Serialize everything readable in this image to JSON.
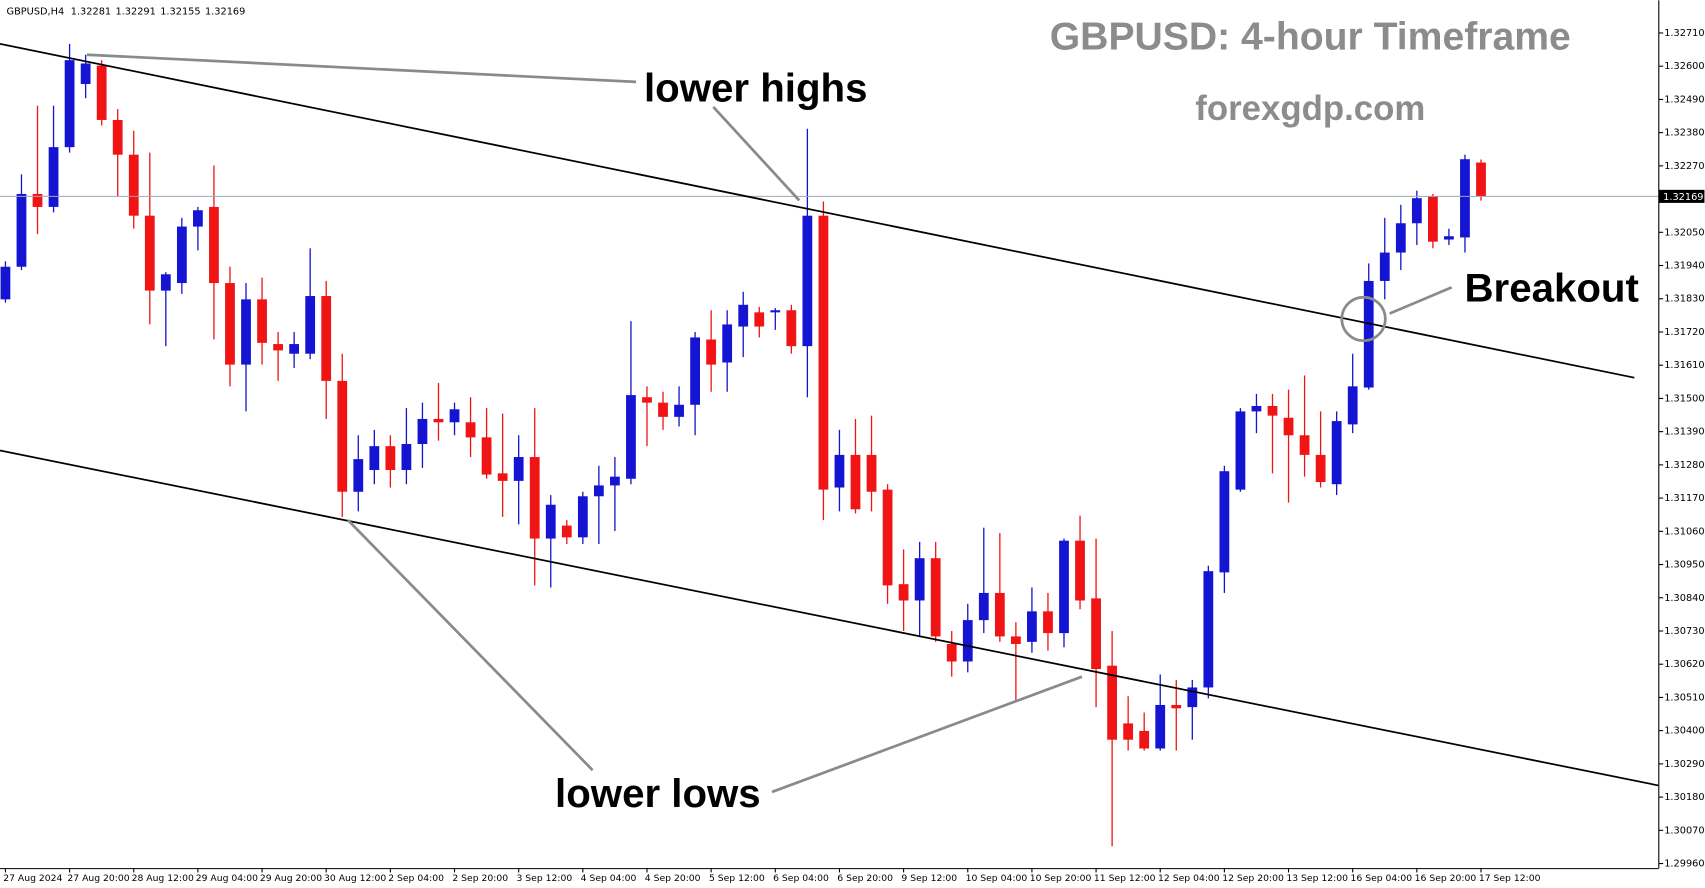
{
  "chart_data": {
    "type": "candlestick",
    "symbol": "GBPUSD,H4",
    "title": "GBPUSD: 4-hour Timeframe",
    "subtitle": "forexgdp.com",
    "annotations": [
      "lower highs",
      "lower lows",
      "Breakout"
    ],
    "up_color": "#1414d2",
    "down_color": "#f01414",
    "price_line_color": "#9aa8ba",
    "categories": [
      "27 Aug 2024",
      null,
      null,
      null,
      "27 Aug 20:00",
      null,
      null,
      null,
      "28 Aug 12:00",
      null,
      null,
      null,
      "29 Aug 04:00",
      null,
      null,
      null,
      "29 Aug 20:00",
      null,
      null,
      null,
      "30 Aug 12:00",
      null,
      null,
      null,
      "2 Sep 04:00",
      null,
      null,
      null,
      "2 Sep 20:00",
      null,
      null,
      null,
      "3 Sep 12:00",
      null,
      null,
      null,
      "4 Sep 04:00",
      null,
      null,
      null,
      "4 Sep 20:00",
      null,
      null,
      null,
      "5 Sep 12:00",
      null,
      null,
      null,
      "6 Sep 04:00",
      null,
      null,
      null,
      "6 Sep 20:00",
      null,
      null,
      null,
      "9 Sep 12:00",
      null,
      null,
      null,
      "10 Sep 04:00",
      null,
      null,
      null,
      "10 Sep 20:00",
      null,
      null,
      null,
      "11 Sep 12:00",
      null,
      null,
      null,
      "12 Sep 04:00",
      null,
      null,
      null,
      "12 Sep 20:00",
      null,
      null,
      null,
      "13 Sep 12:00",
      null,
      null,
      null,
      "16 Sep 04:00",
      null,
      null,
      null,
      "16 Sep 20:00",
      null,
      null,
      null,
      "17 Sep 12:00"
    ],
    "open": [
      1.31828,
      1.31936,
      1.32177,
      1.32134,
      1.32332,
      1.32541,
      1.32602,
      1.32422,
      1.32307,
      1.32105,
      1.31857,
      1.31882,
      1.32069,
      1.32134,
      1.31882,
      1.31612,
      1.31828,
      1.3168,
      1.31648,
      1.31648,
      1.31839,
      1.31558,
      1.31191,
      1.31263,
      1.31342,
      1.31263,
      1.31349,
      1.31432,
      1.31421,
      1.31421,
      1.31371,
      1.31252,
      1.31227,
      1.31306,
      1.31036,
      1.31079,
      1.3104,
      1.31176,
      1.31212,
      1.31234,
      1.31504,
      1.31486,
      1.31439,
      1.31479,
      1.31695,
      1.31619,
      1.31738,
      1.31785,
      1.31785,
      1.31792,
      1.31673,
      1.32105,
      1.31205,
      1.31313,
      1.31313,
      1.31198,
      1.30885,
      1.30831,
      1.30971,
      1.30687,
      1.30629,
      1.30766,
      1.30856,
      1.30712,
      1.30694,
      1.30795,
      1.30723,
      1.31029,
      1.30838,
      1.30615,
      1.30424,
      1.30399,
      1.30341,
      1.30485,
      1.30478,
      1.30543,
      1.30924,
      1.31198,
      1.31457,
      1.31475,
      1.31436,
      1.31378,
      1.31313,
      1.31216,
      1.31414,
      1.31536,
      1.31889,
      1.31983,
      1.3208,
      1.3217,
      1.32026,
      1.32033,
      1.32281
    ],
    "high": [
      1.31954,
      1.32242,
      1.32469,
      1.32469,
      1.32674,
      1.32638,
      1.3262,
      1.32458,
      1.32386,
      1.32314,
      1.31918,
      1.32098,
      1.32134,
      1.32271,
      1.31936,
      1.31882,
      1.319,
      1.3172,
      1.3172,
      1.31997,
      1.31889,
      1.31648,
      1.31378,
      1.31396,
      1.31378,
      1.31468,
      1.31486,
      1.31551,
      1.31486,
      1.31504,
      1.31468,
      1.3145,
      1.31378,
      1.31468,
      1.3118,
      1.31097,
      1.31191,
      1.31277,
      1.31306,
      1.31756,
      1.3154,
      1.31522,
      1.3154,
      1.3172,
      1.31792,
      1.31792,
      1.31853,
      1.31803,
      1.31799,
      1.3181,
      1.32393,
      1.32152,
      1.31396,
      1.31432,
      1.31443,
      1.31216,
      1.31,
      1.31025,
      1.31025,
      1.3073,
      1.3082,
      1.31072,
      1.31054,
      1.30759,
      1.30874,
      1.30856,
      1.31036,
      1.31112,
      1.31036,
      1.3073,
      1.30514,
      1.3046,
      1.30586,
      1.30568,
      1.30568,
      1.30946,
      1.31277,
      1.31468,
      1.31515,
      1.31515,
      1.31529,
      1.31576,
      1.31457,
      1.31457,
      1.31648,
      1.31947,
      1.32098,
      1.32141,
      1.32188,
      1.32177,
      1.32062,
      1.32307,
      1.32291
    ],
    "low": [
      1.31817,
      1.31925,
      1.32044,
      1.32116,
      1.32314,
      1.32494,
      1.32404,
      1.3217,
      1.32062,
      1.31745,
      1.31673,
      1.31846,
      1.3199,
      1.31695,
      1.3154,
      1.31457,
      1.31612,
      1.31558,
      1.31601,
      1.3163,
      1.31432,
      1.31108,
      1.31126,
      1.31216,
      1.31205,
      1.31216,
      1.3127,
      1.3136,
      1.31378,
      1.31306,
      1.31234,
      1.31108,
      1.31083,
      1.30881,
      1.30874,
      1.31018,
      1.31018,
      1.31018,
      1.31061,
      1.31216,
      1.31342,
      1.31396,
      1.31407,
      1.31378,
      1.31522,
      1.31522,
      1.31637,
      1.31702,
      1.31727,
      1.31648,
      1.31504,
      1.31097,
      1.31126,
      1.31119,
      1.31126,
      1.3082,
      1.3073,
      1.30712,
      1.30694,
      1.30579,
      1.30593,
      1.30723,
      1.30694,
      1.30496,
      1.30658,
      1.30665,
      1.30676,
      1.30802,
      1.30478,
      1.30017,
      1.30334,
      1.30334,
      1.30334,
      1.30334,
      1.3037,
      1.30507,
      1.30856,
      1.31191,
      1.31385,
      1.31252,
      1.31155,
      1.31241,
      1.31205,
      1.3118,
      1.31385,
      1.31529,
      1.31828,
      1.31925,
      1.32008,
      1.31997,
      1.32008,
      1.31983,
      1.32155
    ],
    "close": [
      1.31936,
      1.32177,
      1.32134,
      1.32332,
      1.3262,
      1.32609,
      1.32422,
      1.32307,
      1.32105,
      1.31857,
      1.31911,
      1.32069,
      1.32123,
      1.31882,
      1.31612,
      1.31828,
      1.31684,
      1.31659,
      1.3168,
      1.31839,
      1.31558,
      1.31191,
      1.31299,
      1.31342,
      1.31263,
      1.31349,
      1.31432,
      1.31421,
      1.31464,
      1.31371,
      1.31248,
      1.31227,
      1.31306,
      1.31036,
      1.31148,
      1.3104,
      1.31176,
      1.31212,
      1.31241,
      1.31511,
      1.31486,
      1.31439,
      1.31479,
      1.31702,
      1.31612,
      1.31745,
      1.3181,
      1.31738,
      1.31792,
      1.31673,
      1.32105,
      1.31198,
      1.31313,
      1.31133,
      1.31191,
      1.30881,
      1.30831,
      1.30971,
      1.30712,
      1.30629,
      1.30766,
      1.30856,
      1.30712,
      1.30687,
      1.30795,
      1.30723,
      1.31029,
      1.30831,
      1.30604,
      1.3037,
      1.3037,
      1.30341,
      1.30485,
      1.30474,
      1.30543,
      1.30928,
      1.31259,
      1.31457,
      1.31475,
      1.31443,
      1.31378,
      1.31313,
      1.31223,
      1.31425,
      1.3154,
      1.31889,
      1.31983,
      1.3208,
      1.32163,
      1.32019,
      1.32037,
      1.32292,
      1.32169
    ],
    "ylim": [
      1.29945,
      1.32818
    ],
    "yticks": [
      {
        "value": 1.3271,
        "label": "1.32710"
      },
      {
        "value": 1.326,
        "label": "1.32600"
      },
      {
        "value": 1.3249,
        "label": "1.32490"
      },
      {
        "value": 1.3238,
        "label": "1.32380"
      },
      {
        "value": 1.3227,
        "label": "1.32270"
      },
      {
        "value": 1.3205,
        "label": "1.32050"
      },
      {
        "value": 1.3194,
        "label": "1.31940"
      },
      {
        "value": 1.3183,
        "label": "1.31830"
      },
      {
        "value": 1.3172,
        "label": "1.31720"
      },
      {
        "value": 1.3161,
        "label": "1.31610"
      },
      {
        "value": 1.315,
        "label": "1.31500"
      },
      {
        "value": 1.3139,
        "label": "1.31390"
      },
      {
        "value": 1.3128,
        "label": "1.31280"
      },
      {
        "value": 1.3117,
        "label": "1.31170"
      },
      {
        "value": 1.3106,
        "label": "1.31060"
      },
      {
        "value": 1.3095,
        "label": "1.30950"
      },
      {
        "value": 1.3084,
        "label": "1.30840"
      },
      {
        "value": 1.3073,
        "label": "1.30730"
      },
      {
        "value": 1.3062,
        "label": "1.30620"
      },
      {
        "value": 1.3051,
        "label": "1.30510"
      },
      {
        "value": 1.304,
        "label": "1.30400"
      },
      {
        "value": 1.3029,
        "label": "1.30290"
      },
      {
        "value": 1.3018,
        "label": "1.30180"
      },
      {
        "value": 1.3007,
        "label": "1.30070"
      },
      {
        "value": 1.2996,
        "label": "1.29960"
      }
    ],
    "grid": false
  }
}
